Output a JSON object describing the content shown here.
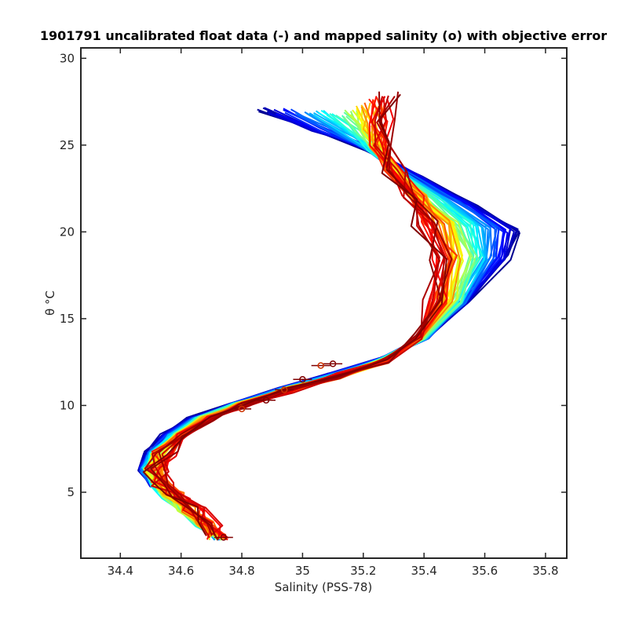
{
  "chart_data": {
    "type": "line",
    "title": "1901791 uncalibrated float data (-) and mapped salinity (o) with objective error",
    "xlabel": "Salinity (PSS-78)",
    "ylabel": "θ °C",
    "xlim": [
      34.27,
      35.87
    ],
    "ylim": [
      1.2,
      30.6
    ],
    "xticks": [
      34.4,
      34.6,
      34.8,
      35,
      35.2,
      35.4,
      35.6,
      35.8
    ],
    "xtick_labels": [
      "34.4",
      "34.6",
      "34.8",
      "35",
      "35.2",
      "35.4",
      "35.6",
      "35.8"
    ],
    "yticks": [
      5,
      10,
      15,
      20,
      25,
      30
    ],
    "ytick_labels": [
      "5",
      "10",
      "15",
      "20",
      "25",
      "30"
    ],
    "grid": false,
    "colormap": [
      "#00008f",
      "#0000ff",
      "#0080ff",
      "#00ffff",
      "#80ff80",
      "#ffff00",
      "#ff8000",
      "#ff0000",
      "#800000"
    ],
    "profile_count": 70,
    "profiles_note_hidden": false,
    "series": [
      {
        "x": [
          34.72,
          34.66,
          34.6,
          34.55,
          34.52,
          34.5,
          34.52,
          34.58,
          34.66,
          34.78,
          34.95,
          35.12,
          35.27,
          35.4,
          35.5,
          35.55,
          35.5,
          35.4,
          35.3,
          35.24,
          35.2,
          35.15
        ],
        "y": [
          2.4,
          3.2,
          4.0,
          4.8,
          5.5,
          6.3,
          7.2,
          8.2,
          9.2,
          10.0,
          10.9,
          11.7,
          12.6,
          14.0,
          16.0,
          18.5,
          20.5,
          22.0,
          23.5,
          24.8,
          25.8,
          26.8
        ]
      },
      {
        "x": [
          34.72,
          34.68,
          34.62,
          34.56,
          34.5,
          34.46,
          34.48,
          34.53,
          34.62,
          34.76,
          34.92,
          35.08,
          35.25,
          35.42,
          35.55,
          35.68,
          35.72,
          35.58,
          35.4,
          35.2,
          35.0,
          34.85
        ],
        "y": [
          2.4,
          3.2,
          4.0,
          4.8,
          5.5,
          6.3,
          7.2,
          8.2,
          9.2,
          10.0,
          10.9,
          11.7,
          12.6,
          14.0,
          16.0,
          18.5,
          20.0,
          21.5,
          23.0,
          24.8,
          26.0,
          27.0
        ]
      },
      {
        "x": [
          34.72,
          34.7,
          34.66,
          34.6,
          34.55,
          34.52,
          34.55,
          34.6,
          34.7,
          34.8,
          34.96,
          35.12,
          35.28,
          35.38,
          35.42,
          35.44,
          35.4,
          35.35,
          35.3,
          35.25,
          35.28,
          35.3
        ],
        "y": [
          2.4,
          3.2,
          4.0,
          4.8,
          5.5,
          6.3,
          7.2,
          8.2,
          9.2,
          10.0,
          10.9,
          11.7,
          12.6,
          14.0,
          16.0,
          18.5,
          20.5,
          22.0,
          23.5,
          25.0,
          26.5,
          28.0
        ]
      }
    ],
    "mapped_salinity_markers": [
      {
        "x": 34.74,
        "y": 2.4
      },
      {
        "x": 34.8,
        "y": 9.8
      },
      {
        "x": 34.88,
        "y": 10.3
      },
      {
        "x": 34.94,
        "y": 10.9
      },
      {
        "x": 35.0,
        "y": 11.5
      },
      {
        "x": 35.06,
        "y": 12.3
      },
      {
        "x": 35.1,
        "y": 12.4
      }
    ]
  }
}
